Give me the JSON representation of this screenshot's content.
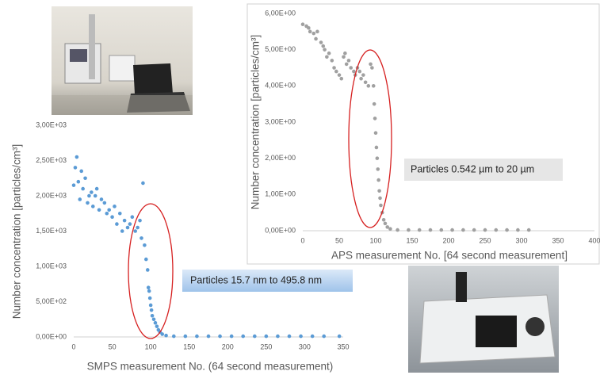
{
  "chart_data": [
    {
      "type": "scatter",
      "xlabel": "APS measurement No. [64 second measurement]",
      "ylabel": "Number concentration [particles/cm³]",
      "annotation": "Particles 0.542 µm  to 20 µm",
      "color": "#a0a0a0",
      "x": [
        0,
        5,
        8,
        10,
        15,
        18,
        20,
        25,
        28,
        30,
        33,
        36,
        40,
        43,
        46,
        50,
        53,
        56,
        58,
        60,
        63,
        66,
        70,
        72,
        75,
        78,
        80,
        83,
        86,
        90,
        93,
        95,
        97,
        98,
        99,
        100,
        101,
        102,
        103,
        104,
        105,
        106,
        107,
        109,
        111,
        113,
        116,
        120,
        130,
        145,
        160,
        175,
        190,
        205,
        220,
        235,
        250,
        265,
        280,
        295,
        310
      ],
      "values": [
        5.7,
        5.65,
        5.6,
        5.5,
        5.45,
        5.3,
        5.5,
        5.2,
        5.1,
        5.0,
        4.8,
        4.9,
        4.7,
        4.5,
        4.4,
        4.3,
        4.2,
        4.8,
        4.9,
        4.6,
        4.7,
        4.5,
        4.4,
        4.3,
        4.5,
        4.4,
        4.2,
        4.3,
        4.1,
        4.0,
        4.6,
        4.5,
        4.0,
        3.5,
        3.1,
        2.7,
        2.3,
        2.0,
        1.7,
        1.4,
        1.1,
        0.9,
        0.7,
        0.5,
        0.3,
        0.2,
        0.1,
        0.05,
        0.02,
        0.02,
        0.02,
        0.02,
        0.02,
        0.02,
        0.02,
        0.02,
        0.02,
        0.02,
        0.02,
        0.02,
        0.02
      ],
      "xlim": [
        0,
        400
      ],
      "xticks": [
        0,
        50,
        100,
        150,
        200,
        250,
        300,
        350,
        400
      ],
      "ylim": [
        0,
        6
      ],
      "yticks": [
        {
          "value": 0,
          "label": "0,00E+00"
        },
        {
          "value": 1,
          "label": "1,00E+00"
        },
        {
          "value": 2,
          "label": "2,00E+00"
        },
        {
          "value": 3,
          "label": "3,00E+00"
        },
        {
          "value": 4,
          "label": "4,00E+00"
        },
        {
          "value": 5,
          "label": "5,00E+00"
        },
        {
          "value": 6,
          "label": "6,00E+00"
        }
      ]
    },
    {
      "type": "scatter",
      "xlabel": "SMPS measurement No. (64 second measurement)",
      "ylabel": "Number concentration [particles/cm³]",
      "annotation": "Particles 15.7 nm to 495.8 nm",
      "color": "#5b9bd5",
      "x": [
        0,
        2,
        4,
        6,
        8,
        10,
        12,
        15,
        18,
        20,
        23,
        25,
        28,
        30,
        33,
        36,
        40,
        43,
        46,
        50,
        53,
        56,
        60,
        63,
        66,
        70,
        73,
        76,
        80,
        83,
        86,
        88,
        90,
        92,
        94,
        96,
        97,
        98,
        99,
        100,
        101,
        102,
        104,
        106,
        108,
        110,
        112,
        115,
        120,
        130,
        145,
        160,
        175,
        190,
        205,
        220,
        235,
        250,
        265,
        280,
        295,
        310,
        325,
        345
      ],
      "values": [
        2150,
        2400,
        2550,
        2200,
        1950,
        2350,
        2100,
        2250,
        1900,
        2000,
        2050,
        1850,
        2000,
        2100,
        1800,
        1950,
        1900,
        1750,
        1800,
        1700,
        1850,
        1600,
        1750,
        1500,
        1650,
        1550,
        1600,
        1700,
        1500,
        1550,
        1650,
        1400,
        2180,
        1300,
        1100,
        950,
        700,
        650,
        550,
        450,
        380,
        300,
        250,
        200,
        150,
        100,
        70,
        40,
        20,
        10,
        10,
        10,
        10,
        10,
        10,
        10,
        10,
        10,
        10,
        10,
        10,
        10,
        10,
        10
      ],
      "xlim": [
        0,
        350
      ],
      "xticks": [
        0,
        50,
        100,
        150,
        200,
        250,
        300,
        350
      ],
      "ylim": [
        0,
        3000
      ],
      "yticks": [
        {
          "value": 0,
          "label": "0,00E+00"
        },
        {
          "value": 500,
          "label": "5,00E+02"
        },
        {
          "value": 1000,
          "label": "1,00E+03"
        },
        {
          "value": 1500,
          "label": "1,50E+03"
        },
        {
          "value": 2000,
          "label": "2,00E+03"
        },
        {
          "value": 2500,
          "label": "2,50E+03"
        },
        {
          "value": 3000,
          "label": "3,00E+03"
        }
      ]
    }
  ]
}
